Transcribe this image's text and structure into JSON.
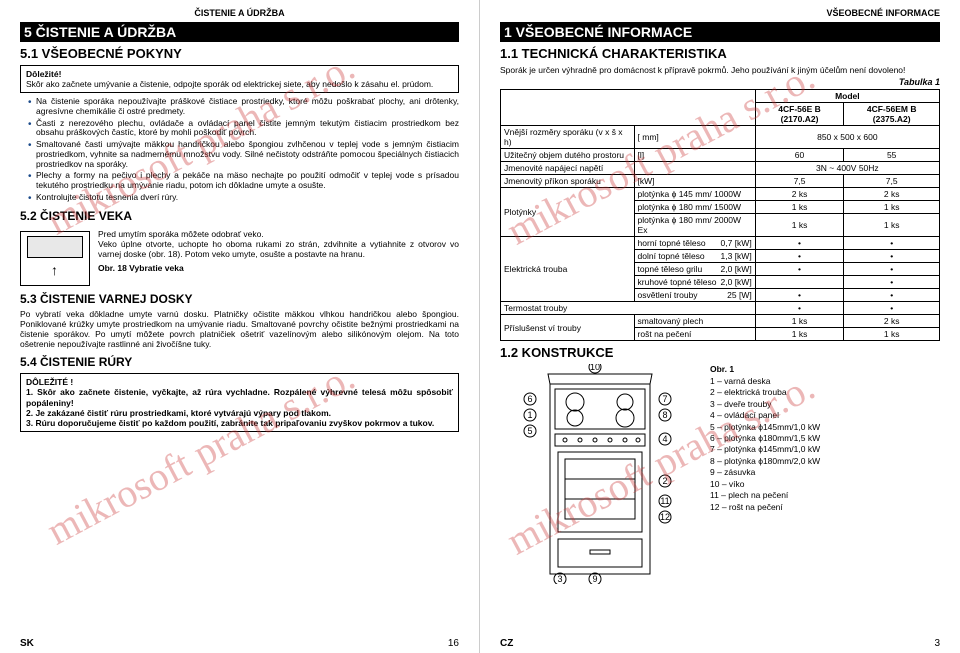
{
  "watermark_text": "mikrosoft praha s.r.o.",
  "left": {
    "top_header": "ČISTENIE A ÚDRŽBA",
    "h1": "5 ČISTENIE A ÚDRŽBA",
    "h2_1": "5.1 VŠEOBECNÉ POKYNY",
    "box1_title": "Dôležité!",
    "box1_text": "Skôr ako začnete umývanie a čistenie, odpojte sporák od elektrickej siete, aby nedošlo k zásahu el. prúdom.",
    "bullets1": [
      "Na čistenie sporáka nepoužívajte práškové čistiace prostriedky, ktoré môžu poškrabať plochy, ani drôtenky, agresívne chemikálie či ostré predmety.",
      "Časti z nerezového plechu, ovládače a ovládací panel čistite jemným tekutým čistiacim prostriedkom bez obsahu práškových častíc, ktoré by mohli poškodiť povrch.",
      "Smaltované časti umývajte mäkkou handričkou alebo špongiou zvlhčenou v teplej vode s jemným čistiacim prostriedkom, vyhnite sa nadmernému množstvu vody. Silné nečistoty odstráňte pomocou špeciálnych čistiacich prostriedkov na sporáky.",
      "Plechy a formy na pečivo i plechy a pekáče na mäso nechajte po použití odmočiť v teplej vode s prísadou tekutého prostriedku na umývanie riadu, potom ich dôkladne umyte a osušte.",
      "Kontrolujte čistotu tesnenia dverí rúry."
    ],
    "h2_2": "5.2 ČISTENIE VEKA",
    "veko_text": "Pred umytím sporáka môžete odobrať veko.\nVeko úplne otvorte, uchopte ho oboma rukami zo strán, zdvihnite a vytiahnite z otvorov vo varnej doske (obr. 18). Potom veko umyte, osušte a postavte na hranu.",
    "veko_caption": "Obr. 18 Vybratie veka",
    "h2_3": "5.3 ČISTENIE VARNEJ DOSKY",
    "para3": "Po vybratí veka dôkladne umyte varnú dosku. Platničky očistite mäkkou vlhkou handričkou alebo špongiou. Poniklované krúžky umyte prostriedkom na umývanie riadu. Smaltované povrchy očistite bežnými prostriedkami na čistenie sporákov. Po umytí môžete povrch platničiek ošetriť vazelínovým alebo silikónovým olejom. Na toto ošetrenie nepoužívajte rastlinné ani živočíšne tuky.",
    "h2_4": "5.4 ČISTENIE RÚRY",
    "box2_title": "DÔLEŽITÉ !",
    "numlist": [
      "1. Skôr ako začnete čistenie, vyčkajte, až rúra vychladne. Rozpálené výhrevné telesá môžu spôsobiť popáleniny!",
      "2. Je zakázané čistiť rúru prostriedkami, ktoré vytvárajú výpary pod tlakom.",
      "3. Rúru doporučujeme čistiť po každom použití, zabránite tak pripaľovaniu zvyškov pokrmov a tukov."
    ],
    "footer_lang": "SK",
    "footer_page": "16"
  },
  "right": {
    "top_header": "VŠEOBECNÉ INFORMACE",
    "h1": "1 VŠEOBECNÉ INFORMACE",
    "h2_1": "1.1 TECHNICKÁ CHARAKTERISTIKA",
    "intro": "Sporák je určen výhradně pro domácnost k přípravě pokrmů. Jeho používání k jiným účelům není dovoleno!",
    "tabulka_label": "Tabulka 1",
    "table": {
      "model_header": "Model",
      "models": [
        "4CF-56E B (2170.A2)",
        "4CF-56EM B (2375.A2)"
      ],
      "rows": [
        {
          "label": "Vnější rozměry sporáku (v x š x h)",
          "unit": "[ mm]",
          "v1": "850 x 500 x 600",
          "span": true
        },
        {
          "label": "Užitečný objem dutého prostoru",
          "unit": "[l]",
          "v1": "60",
          "v2": "55"
        },
        {
          "label": "Jmenovité napájecí napětí",
          "unit": "",
          "v1": "3N ~ 400V 50Hz",
          "span": true
        },
        {
          "label": "Jmenovitý příkon sporáku",
          "unit": "[kW]",
          "v1": "7,5",
          "v2": "7,5"
        }
      ],
      "plotynky_label": "Plotýnky",
      "plotynky_rows": [
        {
          "label": "plotýnka ϕ 145 mm/ 1000W",
          "v1": "2 ks",
          "v2": "2 ks"
        },
        {
          "label": "plotýnka ϕ 180 mm/ 1500W",
          "v1": "1 ks",
          "v2": "1 ks"
        },
        {
          "label": "plotýnka ϕ 180 mm/ 2000W Ex",
          "v1": "1 ks",
          "v2": "1 ks"
        }
      ],
      "trouba_label": "Elektrická trouba",
      "trouba_rows": [
        {
          "label": "horní topné těleso",
          "unit": "0,7 [kW]",
          "v1": "•",
          "v2": "•"
        },
        {
          "label": "dolní topné těleso",
          "unit": "1,3 [kW]",
          "v1": "•",
          "v2": "•"
        },
        {
          "label": "topné těleso grilu",
          "unit": "2,0 [kW]",
          "v1": "•",
          "v2": "•"
        },
        {
          "label": "kruhové topné těleso",
          "unit": "2,0 [kW]",
          "v1": "",
          "v2": "•"
        },
        {
          "label": "osvětlení trouby",
          "unit": "25 [W]",
          "v1": "•",
          "v2": "•"
        }
      ],
      "termostat": {
        "label": "Termostat trouby",
        "v1": "•",
        "v2": "•"
      },
      "prislus_label": "Příslušenst ví trouby",
      "prislus_rows": [
        {
          "label": "smaltovaný plech",
          "v1": "1 ks",
          "v2": "2 ks"
        },
        {
          "label": "rošt na pečení",
          "v1": "1 ks",
          "v2": "1 ks"
        }
      ]
    },
    "h2_2": "1.2 KONSTRUKCE",
    "legend_title": "Obr. 1",
    "legend": [
      "1 – varná deska",
      "2 – elektrická trouba",
      "3 – dveře trouby",
      "4 – ovládací panel",
      "5 – plotýnka ϕ145mm/1,0 kW",
      "6 – plotýnka ϕ180mm/1,5 kW",
      "7 – plotýnka ϕ145mm/1,0 kW",
      "8 – plotýnka ϕ180mm/2,0 kW",
      "9 – zásuvka",
      "10 – víko",
      "11 – plech na pečení",
      "12 – rošt na pečení"
    ],
    "callouts": [
      "1",
      "2",
      "3",
      "4",
      "5",
      "6",
      "7",
      "8",
      "9",
      "10",
      "11",
      "12"
    ],
    "footer_lang": "CZ",
    "footer_page": "3"
  },
  "colors": {
    "accent": "#1a4a8a",
    "watermark": "rgba(200,50,50,0.35)"
  }
}
